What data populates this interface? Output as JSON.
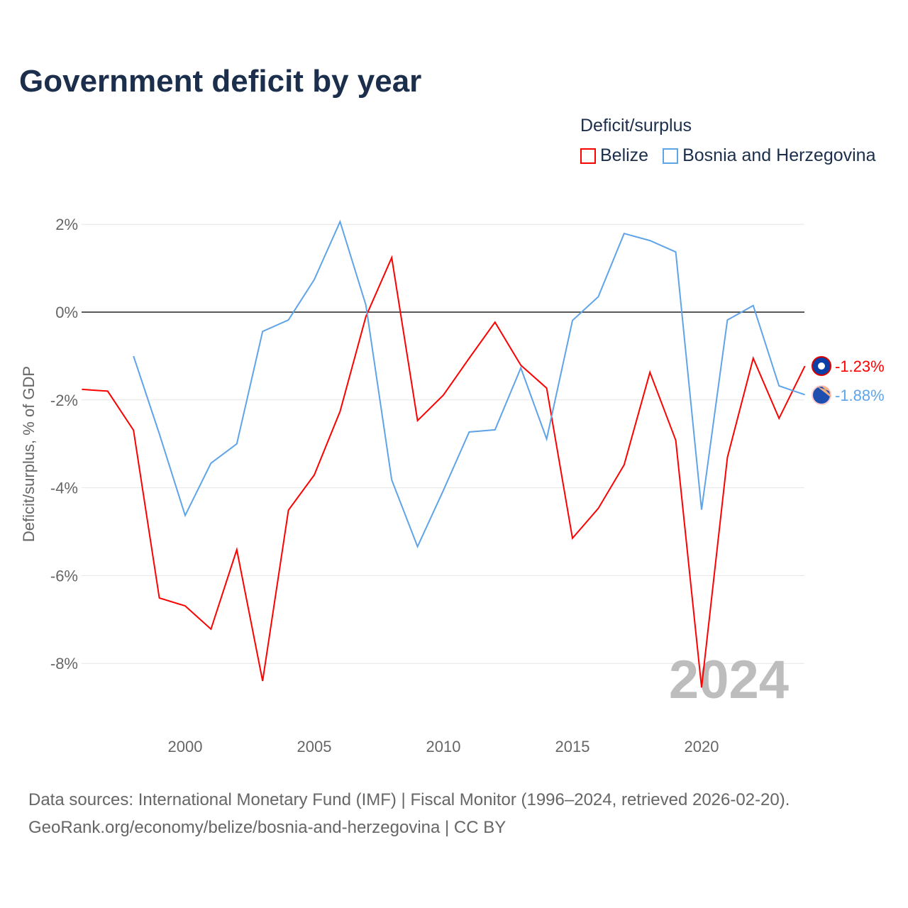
{
  "title": "Government deficit by year",
  "legend": {
    "title": "Deficit/surplus",
    "items": [
      {
        "label": "Belize",
        "color": "#ff0000"
      },
      {
        "label": "Bosnia and Herzegovina",
        "color": "#5fa4e8"
      }
    ]
  },
  "source": {
    "line1": "Data sources: International Monetary Fund (IMF) | Fiscal Monitor (1996–2024, retrieved 2026-02-20).",
    "line2": "GeoRank.org/economy/belize/bosnia-and-herzegovina | CC BY"
  },
  "chart_data": {
    "type": "line",
    "title": "Government deficit by year",
    "xlabel": "",
    "ylabel": "Deficit/surplus, % of GDP",
    "xlim": [
      1996,
      2024
    ],
    "ylim": [
      -9.3,
      2.3
    ],
    "x_ticks": [
      2000,
      2005,
      2010,
      2015,
      2020
    ],
    "y_ticks": [
      2,
      0,
      -2,
      -4,
      -6,
      -8
    ],
    "y_tick_labels": [
      "2%",
      "0%",
      "-2%",
      "-4%",
      "-6%",
      "-8%"
    ],
    "watermark_year": "2024",
    "series": [
      {
        "name": "Belize",
        "color": "#ff0000",
        "end_label": "-1.23%",
        "x": [
          1996,
          1997,
          1998,
          1999,
          2000,
          2001,
          2002,
          2003,
          2004,
          2005,
          2006,
          2007,
          2008,
          2009,
          2010,
          2011,
          2012,
          2013,
          2014,
          2015,
          2016,
          2017,
          2018,
          2019,
          2020,
          2021,
          2022,
          2023,
          2024
        ],
        "values": [
          -1.76,
          -1.8,
          -2.69,
          -6.51,
          -6.69,
          -7.22,
          -5.41,
          -8.4,
          -4.51,
          -3.71,
          -2.26,
          -0.1,
          1.24,
          -2.47,
          -1.89,
          -1.05,
          -0.23,
          -1.21,
          -1.73,
          -5.15,
          -4.47,
          -3.48,
          -1.37,
          -2.92,
          -8.55,
          -3.31,
          -1.05,
          -2.42,
          -1.23
        ]
      },
      {
        "name": "Bosnia and Herzegovina",
        "color": "#5fa4e8",
        "end_label": "-1.88%",
        "x": [
          1998,
          1999,
          2000,
          2001,
          2002,
          2003,
          2004,
          2005,
          2006,
          2007,
          2008,
          2009,
          2010,
          2011,
          2012,
          2013,
          2014,
          2015,
          2016,
          2017,
          2018,
          2019,
          2020,
          2021,
          2022,
          2023,
          2024
        ],
        "values": [
          -1.0,
          -2.77,
          -4.63,
          -3.44,
          -3.0,
          -0.44,
          -0.18,
          0.74,
          2.06,
          0.16,
          -3.82,
          -5.34,
          -4.06,
          -2.73,
          -2.68,
          -1.27,
          -2.89,
          -0.19,
          0.35,
          1.79,
          1.63,
          1.37,
          -4.5,
          -0.18,
          0.15,
          -1.68,
          -1.88
        ]
      }
    ]
  }
}
